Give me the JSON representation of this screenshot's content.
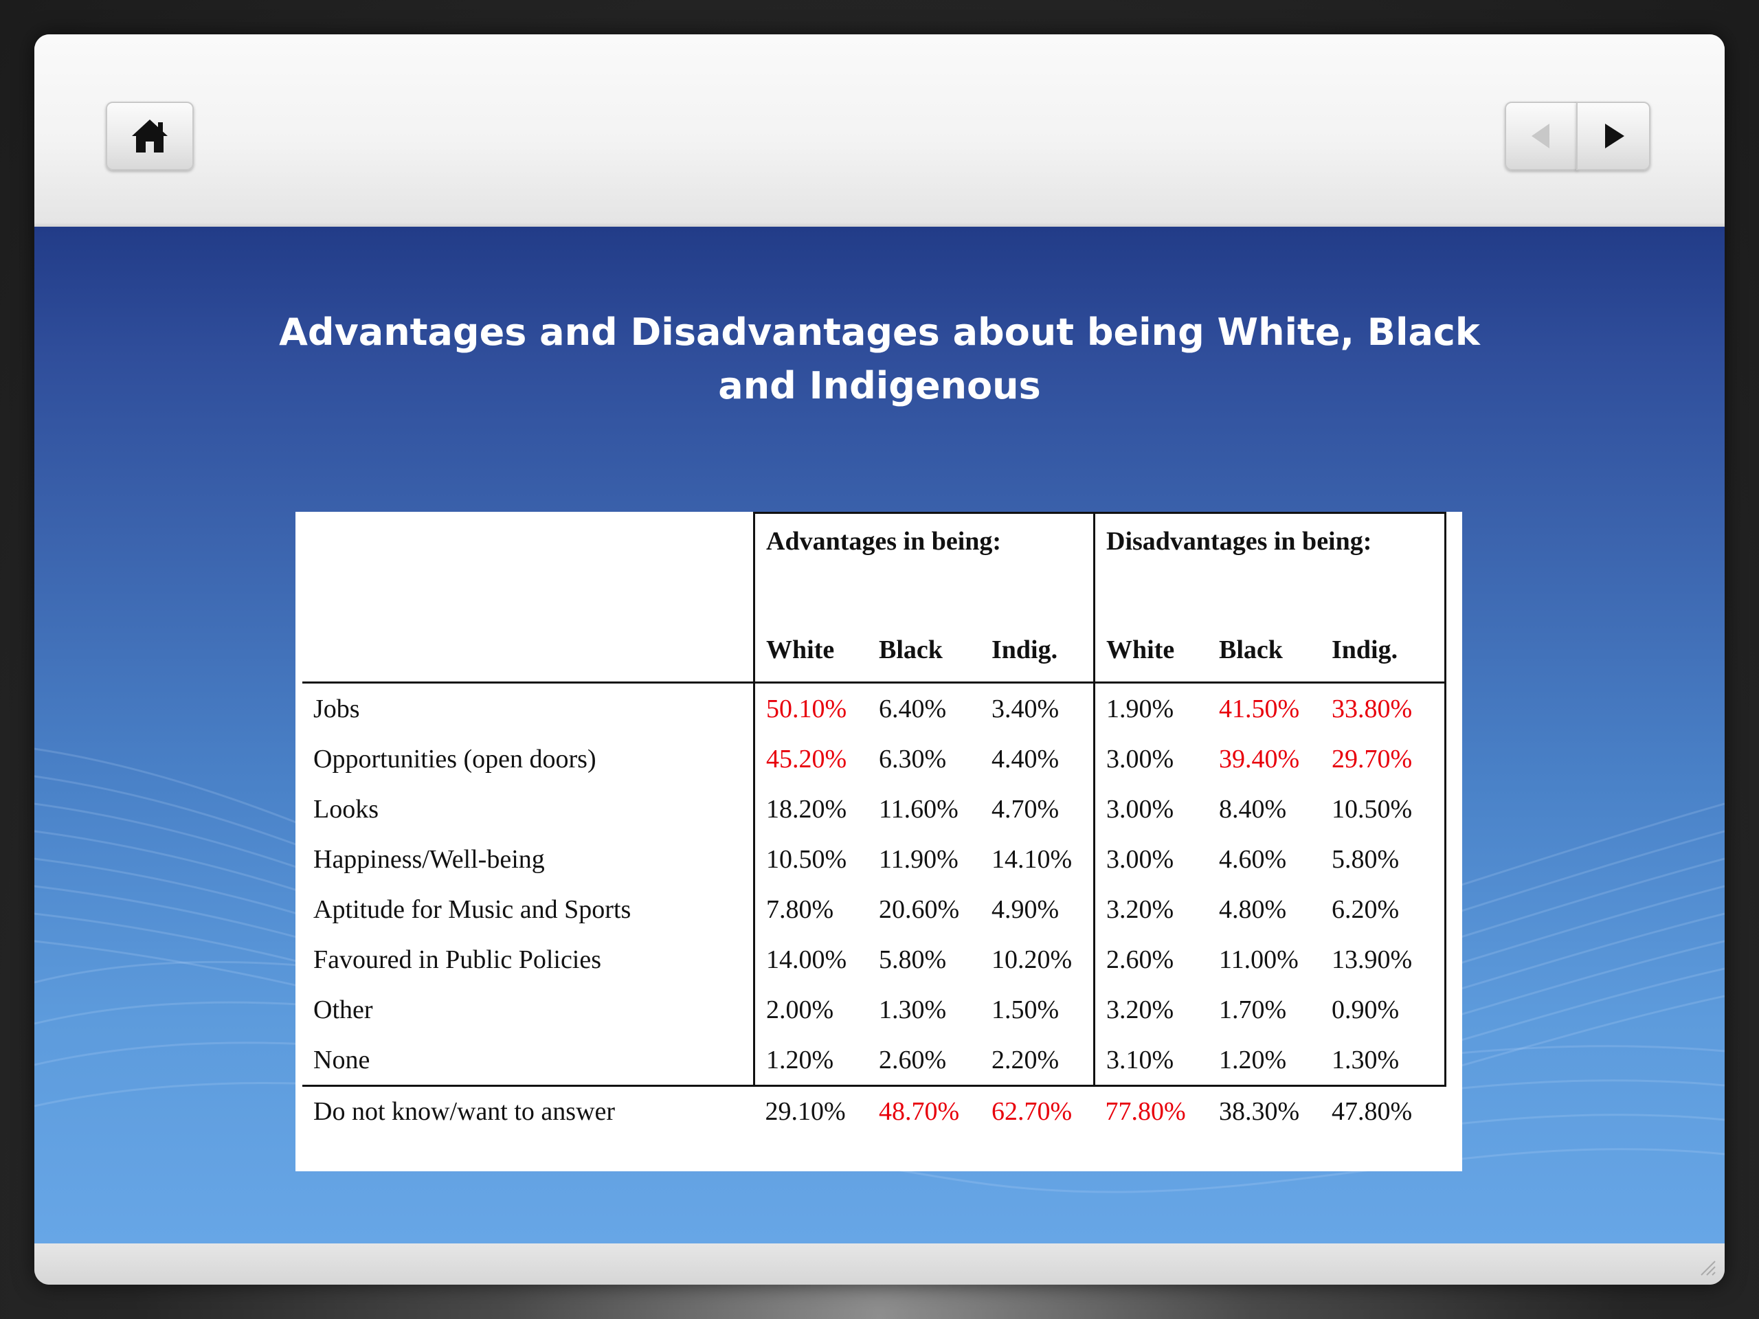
{
  "toolbar": {
    "home_icon": "home-icon",
    "prev_icon": "triangle-left-icon",
    "next_icon": "triangle-right-icon"
  },
  "slide": {
    "title_line1": "Advantages and Disadvantages about being White, Black",
    "title_line2": "and Indigenous"
  },
  "colors": {
    "highlight": "#e8000b",
    "content_top": "#223c88",
    "content_bottom": "#67a6e6"
  },
  "table": {
    "group_headers": [
      "Advantages in being:",
      "Disadvantages in being:"
    ],
    "sub_headers": [
      "White",
      "Black",
      "Indig.",
      "White",
      "Black",
      "Indig."
    ],
    "rows": [
      {
        "label": "Jobs",
        "values": [
          "50.10%",
          "6.40%",
          "3.40%",
          "1.90%",
          "41.50%",
          "33.80%"
        ],
        "highlight": [
          true,
          false,
          false,
          false,
          true,
          true
        ]
      },
      {
        "label": "Opportunities (open doors)",
        "values": [
          "45.20%",
          "6.30%",
          "4.40%",
          "3.00%",
          "39.40%",
          "29.70%"
        ],
        "highlight": [
          true,
          false,
          false,
          false,
          true,
          true
        ]
      },
      {
        "label": "Looks",
        "values": [
          "18.20%",
          "11.60%",
          "4.70%",
          "3.00%",
          "8.40%",
          "10.50%"
        ],
        "highlight": [
          false,
          false,
          false,
          false,
          false,
          false
        ]
      },
      {
        "label": "Happiness/Well-being",
        "values": [
          "10.50%",
          "11.90%",
          "14.10%",
          "3.00%",
          "4.60%",
          "5.80%"
        ],
        "highlight": [
          false,
          false,
          false,
          false,
          false,
          false
        ]
      },
      {
        "label": "Aptitude for Music and Sports",
        "values": [
          "7.80%",
          "20.60%",
          "4.90%",
          "3.20%",
          "4.80%",
          "6.20%"
        ],
        "highlight": [
          false,
          false,
          false,
          false,
          false,
          false
        ]
      },
      {
        "label": "Favoured in Public Policies",
        "values": [
          "14.00%",
          "5.80%",
          "10.20%",
          "2.60%",
          "11.00%",
          "13.90%"
        ],
        "highlight": [
          false,
          false,
          false,
          false,
          false,
          false
        ]
      },
      {
        "label": "Other",
        "values": [
          "2.00%",
          "1.30%",
          "1.50%",
          "3.20%",
          "1.70%",
          "0.90%"
        ],
        "highlight": [
          false,
          false,
          false,
          false,
          false,
          false
        ]
      },
      {
        "label": "None",
        "values": [
          "1.20%",
          "2.60%",
          "2.20%",
          "3.10%",
          "1.20%",
          "1.30%"
        ],
        "highlight": [
          false,
          false,
          false,
          false,
          false,
          false
        ]
      }
    ],
    "footer_row": {
      "label": "Do not know/want to answer",
      "values": [
        "29.10%",
        "48.70%",
        "62.70%",
        "77.80%",
        "38.30%",
        "47.80%"
      ],
      "highlight": [
        false,
        true,
        true,
        true,
        false,
        false
      ]
    }
  }
}
